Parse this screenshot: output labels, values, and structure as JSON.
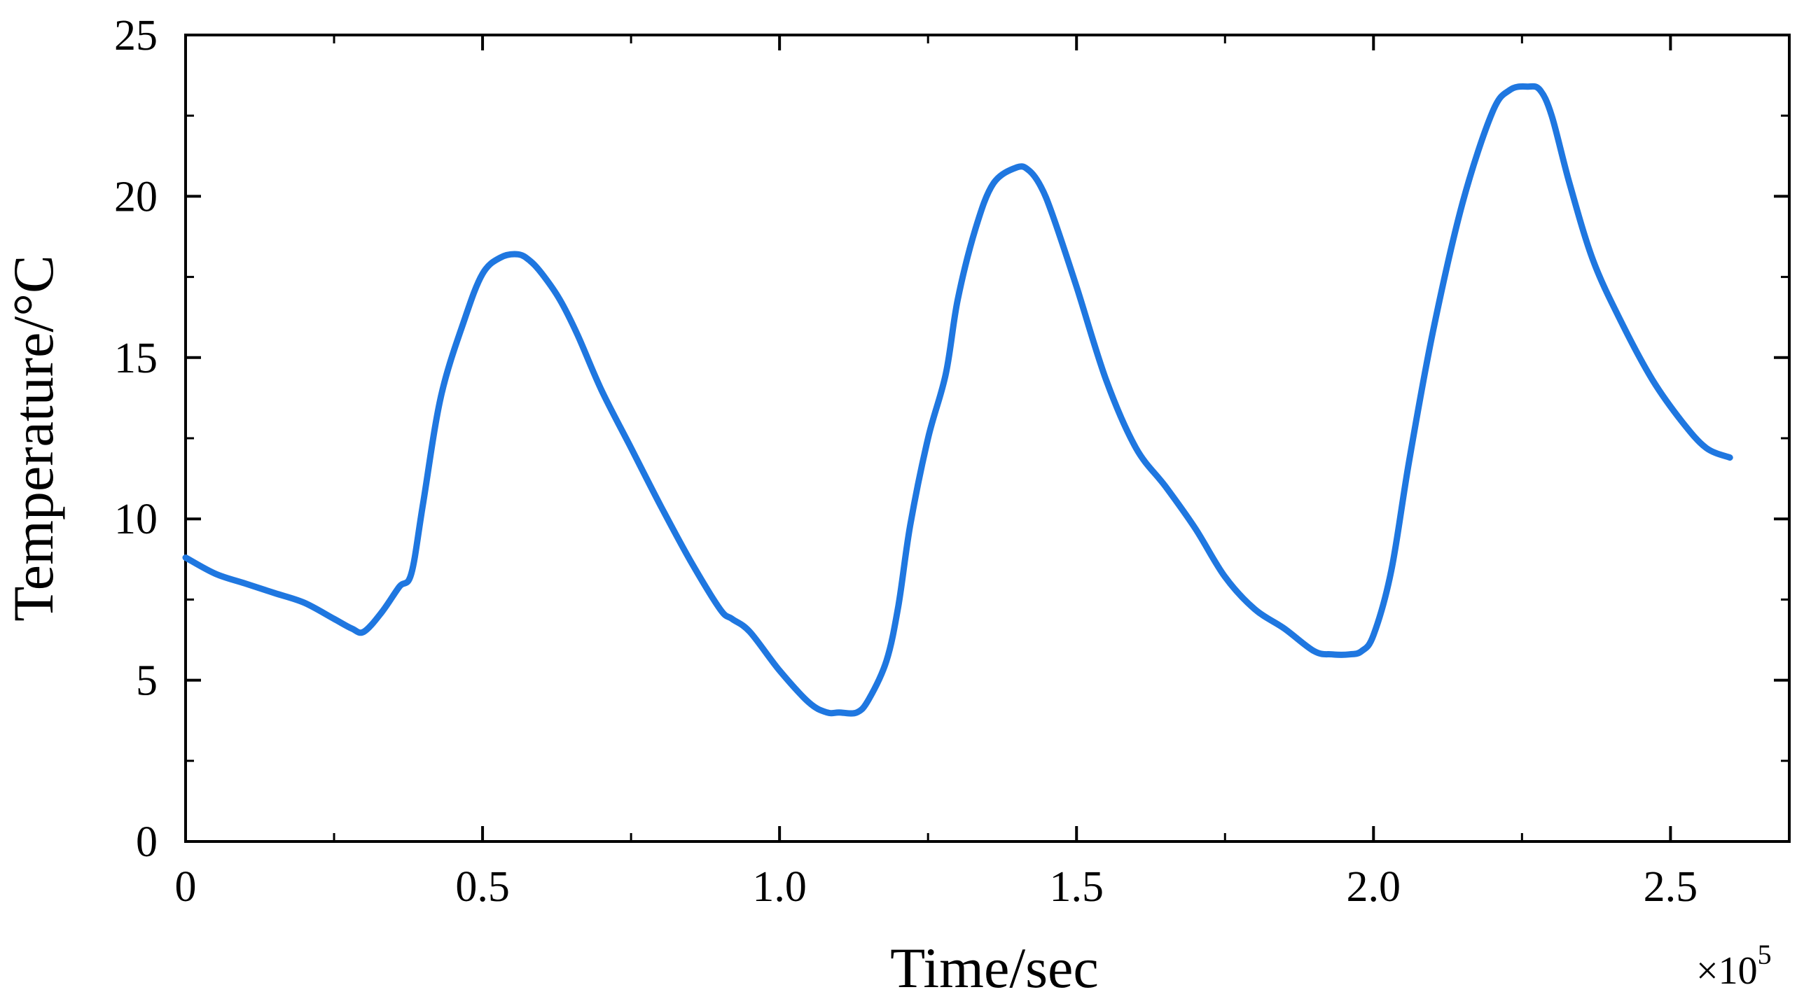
{
  "chart_data": {
    "type": "line",
    "xlabel": "Time/sec",
    "ylabel": "Temperature/°C",
    "x_multiplier": {
      "base": "×10",
      "exponent": "5"
    },
    "xlim": [
      0,
      2.7
    ],
    "ylim": [
      0,
      25
    ],
    "x_ticks": [
      {
        "value": 0,
        "label": "0"
      },
      {
        "value": 0.5,
        "label": "0.5"
      },
      {
        "value": 1.0,
        "label": "1.0"
      },
      {
        "value": 1.5,
        "label": "1.5"
      },
      {
        "value": 2.0,
        "label": "2.0"
      },
      {
        "value": 2.5,
        "label": "2.5"
      }
    ],
    "y_ticks": [
      {
        "value": 0,
        "label": "0"
      },
      {
        "value": 5,
        "label": "5"
      },
      {
        "value": 10,
        "label": "10"
      },
      {
        "value": 15,
        "label": "15"
      },
      {
        "value": 20,
        "label": "20"
      },
      {
        "value": 25,
        "label": "25"
      }
    ],
    "grid": false,
    "series": [
      {
        "color": "#1f77e0",
        "x": [
          0,
          0.05,
          0.1,
          0.15,
          0.2,
          0.25,
          0.28,
          0.3,
          0.33,
          0.36,
          0.38,
          0.4,
          0.43,
          0.47,
          0.5,
          0.53,
          0.56,
          0.58,
          0.6,
          0.63,
          0.66,
          0.7,
          0.75,
          0.8,
          0.85,
          0.9,
          0.92,
          0.95,
          1.0,
          1.05,
          1.08,
          1.1,
          1.13,
          1.15,
          1.18,
          1.2,
          1.22,
          1.25,
          1.28,
          1.3,
          1.33,
          1.36,
          1.4,
          1.42,
          1.44,
          1.46,
          1.5,
          1.55,
          1.6,
          1.65,
          1.7,
          1.75,
          1.8,
          1.85,
          1.9,
          1.93,
          1.96,
          1.98,
          2.0,
          2.03,
          2.06,
          2.1,
          2.15,
          2.2,
          2.23,
          2.26,
          2.28,
          2.3,
          2.33,
          2.37,
          2.42,
          2.47,
          2.52,
          2.56,
          2.6
        ],
        "y": [
          8.8,
          8.3,
          8.0,
          7.7,
          7.4,
          6.9,
          6.6,
          6.5,
          7.1,
          7.9,
          8.3,
          10.5,
          13.8,
          16.2,
          17.6,
          18.1,
          18.2,
          18.0,
          17.6,
          16.8,
          15.7,
          14.0,
          12.2,
          10.4,
          8.7,
          7.2,
          6.9,
          6.5,
          5.3,
          4.3,
          4.0,
          4.0,
          4.0,
          4.4,
          5.6,
          7.3,
          9.8,
          12.5,
          14.5,
          16.8,
          19.0,
          20.4,
          20.9,
          20.8,
          20.3,
          19.4,
          17.2,
          14.3,
          12.2,
          11.0,
          9.7,
          8.2,
          7.2,
          6.6,
          5.9,
          5.8,
          5.8,
          5.9,
          6.4,
          8.4,
          11.8,
          15.8,
          19.8,
          22.6,
          23.3,
          23.4,
          23.3,
          22.5,
          20.4,
          18.0,
          16.0,
          14.3,
          13.0,
          12.2,
          11.9
        ]
      }
    ]
  }
}
